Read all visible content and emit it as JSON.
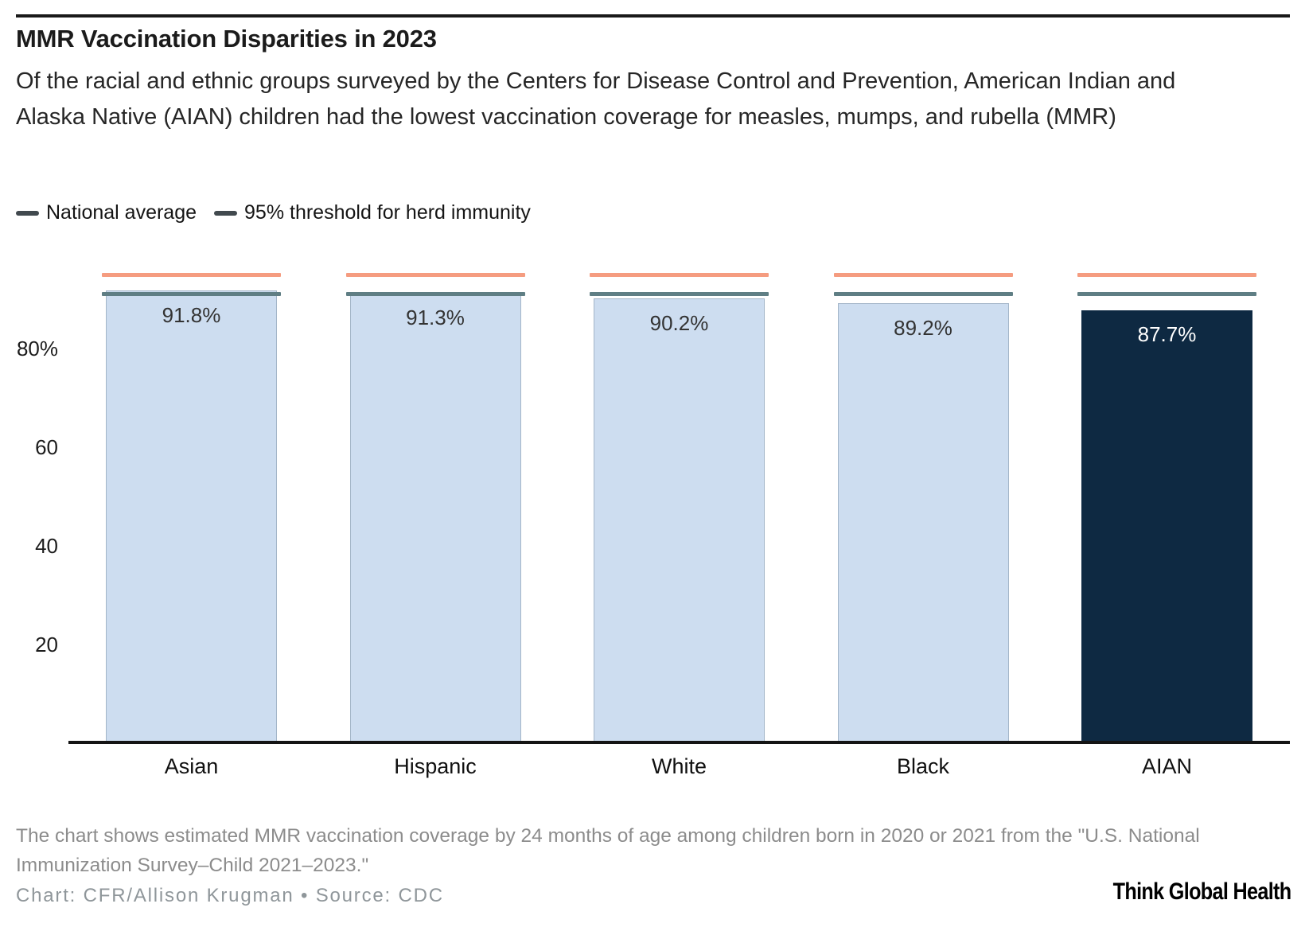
{
  "page": {
    "title": "MMR Vaccination Disparities in 2023",
    "subtitle": "Of the racial and ethnic groups surveyed by the Centers for Disease Control and Prevention, American Indian and Alaska Native (AIAN) children had the lowest vaccination coverage for measles, mumps, and rubella (MMR)"
  },
  "legend": {
    "items": [
      {
        "label": "National average"
      },
      {
        "label": "95% threshold for herd immunity"
      }
    ]
  },
  "chart_data": {
    "type": "bar",
    "title": "MMR Vaccination Disparities in 2023",
    "categories": [
      "Asian",
      "Hispanic",
      "White",
      "Black",
      "AIAN"
    ],
    "values": [
      91.8,
      91.3,
      90.2,
      89.2,
      87.7
    ],
    "value_labels": [
      "91.8%",
      "91.3%",
      "90.2%",
      "89.2%",
      "87.7%"
    ],
    "bar_colors": [
      "#cdddf0",
      "#cdddf0",
      "#cdddf0",
      "#cdddf0",
      "#0e2942"
    ],
    "value_label_colors": [
      "#333333",
      "#333333",
      "#333333",
      "#333333",
      "#ffffff"
    ],
    "xlabel": "",
    "ylabel": "",
    "ylim": [
      0,
      100
    ],
    "yticks": [
      {
        "value": 20,
        "label": "20"
      },
      {
        "value": 40,
        "label": "40"
      },
      {
        "value": 60,
        "label": "60"
      },
      {
        "value": 80,
        "label": "80%"
      }
    ],
    "reference_lines": [
      {
        "name": "National average",
        "value": 91,
        "color": "#5f7e84"
      },
      {
        "name": "95% threshold for herd immunity",
        "value": 95,
        "color": "#f59c80"
      }
    ],
    "grid": false,
    "legend_position": "top-left"
  },
  "footer": {
    "note": "The chart shows estimated MMR vaccination coverage by 24 months of age among children born in 2020 or 2021 from the \"U.S. National Immunization Survey–Child 2021–2023.\"",
    "credit": "Chart: CFR/Allison Krugman • Source: CDC",
    "brand": "Think Global Health"
  },
  "colors": {
    "top_rule": "#191919",
    "bar_light": "#cdddf0",
    "bar_dark": "#0e2942",
    "national_average_line": "#5f7e84",
    "herd_immunity_line": "#f59c80",
    "legend_dash": "#41494e"
  }
}
